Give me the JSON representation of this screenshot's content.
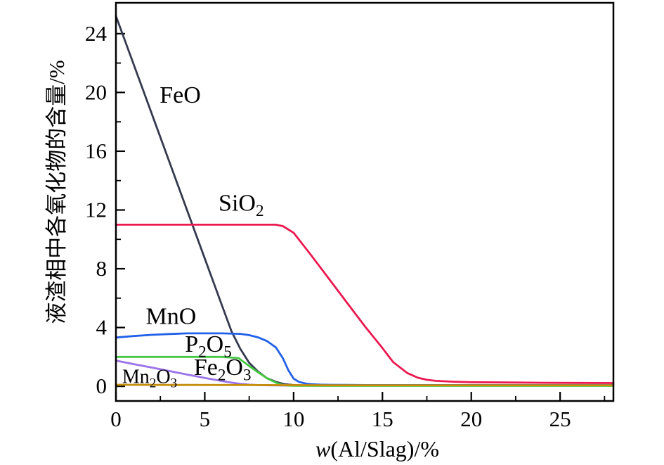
{
  "figure": {
    "background": "#ffffff",
    "axis_color": "#000000"
  },
  "chart_data": {
    "type": "line",
    "title": "",
    "xlabel": "w(Al/Slag)/%",
    "xlabel_parts": [
      "w",
      "(Al/Slag)/%"
    ],
    "ylabel": "液渣相中各氧化物的含量/%",
    "xlim": [
      0,
      28
    ],
    "ylim": [
      -1,
      26.1
    ],
    "grid": false,
    "legend_position": "inline-curve-labels",
    "x_ticks": {
      "major": [
        0,
        5,
        10,
        15,
        20,
        25
      ],
      "labels": [
        "0",
        "5",
        "10",
        "15",
        "20",
        "25"
      ],
      "minor": [
        2.5,
        7.5,
        12.5,
        17.5,
        22.5,
        27.5
      ]
    },
    "y_ticks": {
      "major": [
        0,
        4,
        8,
        12,
        16,
        20,
        24
      ],
      "labels": [
        "0",
        "4",
        "8",
        "12",
        "16",
        "20",
        "24"
      ],
      "minor": [
        2,
        6,
        10,
        14,
        18,
        22
      ]
    },
    "series": [
      {
        "name": "FeO",
        "label_text": "FeO",
        "color": "#363a4e",
        "label": {
          "x": 3.62,
          "y": 19.3,
          "size": 34
        },
        "points": [
          [
            0,
            25.2
          ],
          [
            2,
            18.6
          ],
          [
            4,
            12.0
          ],
          [
            5,
            8.7
          ],
          [
            6,
            5.4
          ],
          [
            6.5,
            3.75
          ],
          [
            7,
            2.55
          ],
          [
            7.5,
            1.6
          ],
          [
            8,
            1.0
          ],
          [
            8.5,
            0.55
          ],
          [
            9,
            0.3
          ],
          [
            9.5,
            0.14
          ],
          [
            10,
            0.08
          ],
          [
            11,
            0.05
          ],
          [
            12,
            0.05
          ],
          [
            16,
            0.05
          ],
          [
            20,
            0.05
          ],
          [
            24,
            0.05
          ],
          [
            28,
            0.05
          ]
        ]
      },
      {
        "name": "Fe2O3",
        "label_text": "Fe2O3",
        "color": "#9b72e8",
        "label": {
          "x": 6.0,
          "y": 0.78,
          "size": 34
        },
        "points": [
          [
            0,
            1.75
          ],
          [
            1,
            1.51
          ],
          [
            2,
            1.28
          ],
          [
            3,
            1.04
          ],
          [
            4,
            0.8
          ],
          [
            5,
            0.57
          ],
          [
            6,
            0.35
          ],
          [
            6.5,
            0.25
          ],
          [
            7,
            0.17
          ],
          [
            7.5,
            0.11
          ],
          [
            8,
            0.08
          ],
          [
            9,
            0.06
          ],
          [
            10,
            0.05
          ],
          [
            12,
            0.05
          ],
          [
            16,
            0.05
          ],
          [
            20,
            0.05
          ],
          [
            24,
            0.05
          ],
          [
            28,
            0.05
          ]
        ]
      },
      {
        "name": "P2O5",
        "label_text": "P2O5",
        "color": "#44c944",
        "label": {
          "x": 5.2,
          "y": 2.35,
          "size": 34
        },
        "points": [
          [
            0,
            2.0
          ],
          [
            2,
            2.0
          ],
          [
            4,
            2.0
          ],
          [
            6,
            2.0
          ],
          [
            6.9,
            1.92
          ],
          [
            7.5,
            1.38
          ],
          [
            8,
            0.95
          ],
          [
            8.5,
            0.55
          ],
          [
            9,
            0.25
          ],
          [
            9.3,
            0.12
          ],
          [
            9.7,
            0.05
          ],
          [
            10,
            0.04
          ],
          [
            12,
            0.03
          ],
          [
            16,
            0.03
          ],
          [
            20,
            0.03
          ],
          [
            24,
            0.03
          ],
          [
            28,
            0.03
          ]
        ]
      },
      {
        "name": "MnO",
        "label_text": "MnO",
        "color": "#2261e8",
        "label": {
          "x": 3.1,
          "y": 4.25,
          "size": 34
        },
        "points": [
          [
            0,
            3.32
          ],
          [
            1,
            3.42
          ],
          [
            2,
            3.5
          ],
          [
            3,
            3.56
          ],
          [
            4,
            3.6
          ],
          [
            5,
            3.6
          ],
          [
            6,
            3.6
          ],
          [
            7,
            3.57
          ],
          [
            7.5,
            3.48
          ],
          [
            8,
            3.33
          ],
          [
            8.5,
            3.08
          ],
          [
            9,
            2.65
          ],
          [
            9.4,
            1.9
          ],
          [
            9.7,
            1.1
          ],
          [
            10,
            0.52
          ],
          [
            10.3,
            0.3
          ],
          [
            10.7,
            0.18
          ],
          [
            11,
            0.14
          ],
          [
            11.5,
            0.11
          ],
          [
            12,
            0.1
          ],
          [
            13,
            0.09
          ],
          [
            14,
            0.08
          ],
          [
            16,
            0.08
          ],
          [
            20,
            0.08
          ],
          [
            24,
            0.08
          ],
          [
            28,
            0.08
          ]
        ]
      },
      {
        "name": "SiO2",
        "label_text": "SiO2",
        "color": "#eb1950",
        "label": {
          "x": 7.05,
          "y": 11.95,
          "size": 34
        },
        "points": [
          [
            0,
            11
          ],
          [
            4,
            11
          ],
          [
            8,
            11
          ],
          [
            9,
            11
          ],
          [
            9.4,
            10.9
          ],
          [
            10,
            10.45
          ],
          [
            11,
            8.9
          ],
          [
            12,
            7.3
          ],
          [
            13,
            5.7
          ],
          [
            14,
            4.1
          ],
          [
            15,
            2.6
          ],
          [
            15.6,
            1.65
          ],
          [
            16.4,
            0.9
          ],
          [
            17,
            0.58
          ],
          [
            17.5,
            0.44
          ],
          [
            18,
            0.37
          ],
          [
            19,
            0.31
          ],
          [
            20,
            0.28
          ],
          [
            22,
            0.26
          ],
          [
            24,
            0.24
          ],
          [
            26,
            0.23
          ],
          [
            28,
            0.22
          ]
        ]
      },
      {
        "name": "Mn2O3",
        "label_text": "Mn2O3",
        "color": "#c58e0b",
        "label": {
          "x": 1.9,
          "y": 0.22,
          "size": 28
        },
        "points": [
          [
            0,
            0.1
          ],
          [
            4,
            0.09
          ],
          [
            8,
            0.08
          ],
          [
            12,
            0.07
          ],
          [
            16,
            0.07
          ],
          [
            20,
            0.07
          ],
          [
            24,
            0.07
          ],
          [
            28,
            0.07
          ]
        ]
      }
    ]
  }
}
